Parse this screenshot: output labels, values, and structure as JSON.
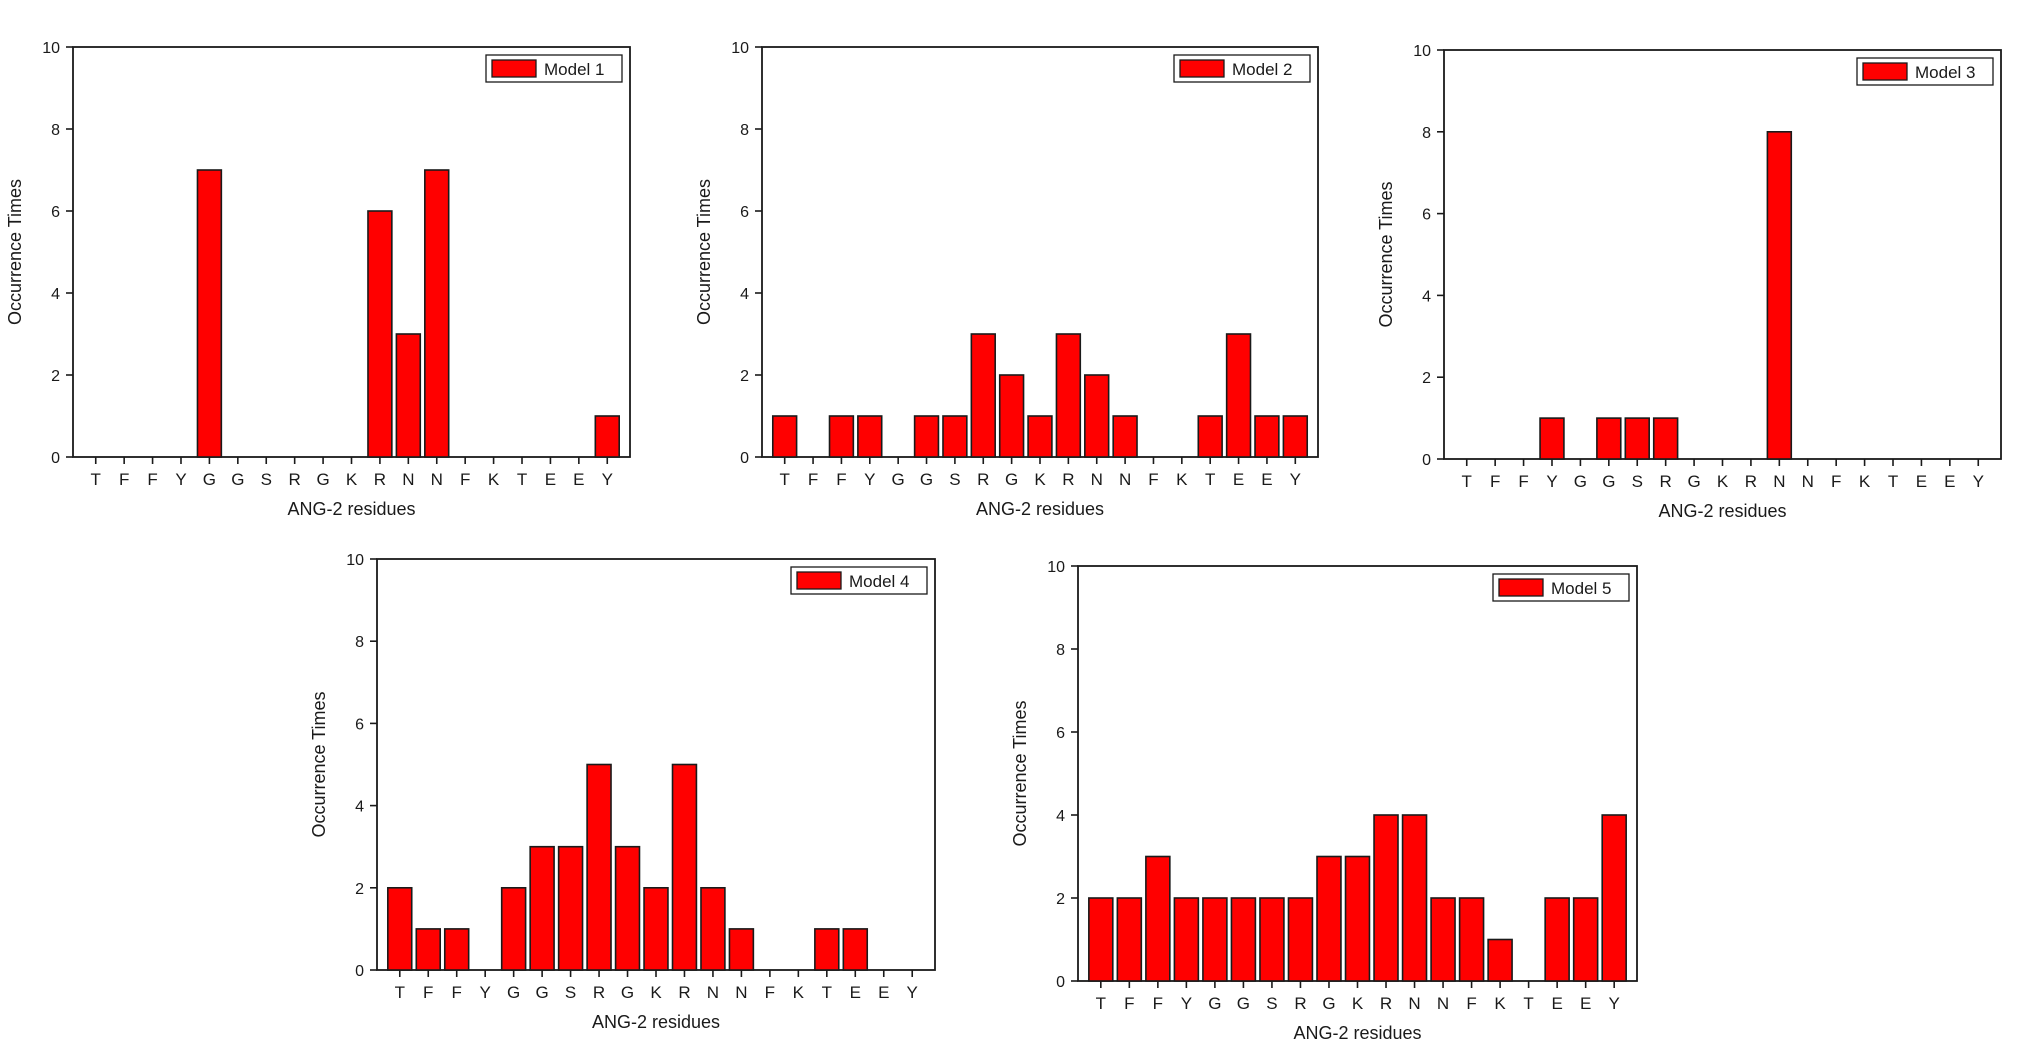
{
  "figure_title": "",
  "chart_data": [
    {
      "type": "bar",
      "title": "",
      "legend": "Model 1",
      "legend_position": "top-right",
      "xlabel": "ANG-2 residues",
      "ylabel": "Occurrence Times",
      "categories": [
        "T",
        "F",
        "F",
        "Y",
        "G",
        "G",
        "S",
        "R",
        "G",
        "K",
        "R",
        "N",
        "N",
        "F",
        "K",
        "T",
        "E",
        "E",
        "Y"
      ],
      "values": [
        0,
        0,
        0,
        0,
        7,
        0,
        0,
        0,
        0,
        0,
        6,
        3,
        7,
        0,
        0,
        0,
        0,
        0,
        1
      ],
      "ylim": [
        0,
        10
      ],
      "yticks": [
        0,
        2,
        4,
        6,
        8,
        10
      ],
      "grid": false
    },
    {
      "type": "bar",
      "title": "",
      "legend": "Model 2",
      "legend_position": "top-right",
      "xlabel": "ANG-2 residues",
      "ylabel": "Occurrence Times",
      "categories": [
        "T",
        "F",
        "F",
        "Y",
        "G",
        "G",
        "S",
        "R",
        "G",
        "K",
        "R",
        "N",
        "N",
        "F",
        "K",
        "T",
        "E",
        "E",
        "Y"
      ],
      "values": [
        1,
        0,
        1,
        1,
        0,
        1,
        1,
        3,
        2,
        1,
        3,
        2,
        1,
        0,
        0,
        1,
        3,
        1,
        1
      ],
      "ylim": [
        0,
        10
      ],
      "yticks": [
        0,
        2,
        4,
        6,
        8,
        10
      ],
      "grid": false
    },
    {
      "type": "bar",
      "title": "",
      "legend": "Model 3",
      "legend_position": "top-right",
      "xlabel": "ANG-2 residues",
      "ylabel": "Occurrence Times",
      "categories": [
        "T",
        "F",
        "F",
        "Y",
        "G",
        "G",
        "S",
        "R",
        "G",
        "K",
        "R",
        "N",
        "N",
        "F",
        "K",
        "T",
        "E",
        "E",
        "Y"
      ],
      "values": [
        0,
        0,
        0,
        1,
        0,
        1,
        1,
        1,
        0,
        0,
        0,
        8,
        0,
        0,
        0,
        0,
        0,
        0,
        0
      ],
      "ylim": [
        0,
        10
      ],
      "yticks": [
        0,
        2,
        4,
        6,
        8,
        10
      ],
      "grid": false
    },
    {
      "type": "bar",
      "title": "",
      "legend": "Model 4",
      "legend_position": "top-right",
      "xlabel": "ANG-2 residues",
      "ylabel": "Occurrence Times",
      "categories": [
        "T",
        "F",
        "F",
        "Y",
        "G",
        "G",
        "S",
        "R",
        "G",
        "K",
        "R",
        "N",
        "N",
        "F",
        "K",
        "T",
        "E",
        "E",
        "Y"
      ],
      "values": [
        2,
        1,
        1,
        0,
        2,
        3,
        3,
        5,
        3,
        2,
        5,
        2,
        1,
        0,
        0,
        1,
        1,
        0,
        0
      ],
      "ylim": [
        0,
        10
      ],
      "yticks": [
        0,
        2,
        4,
        6,
        8,
        10
      ],
      "grid": false
    },
    {
      "type": "bar",
      "title": "",
      "legend": "Model 5",
      "legend_position": "top-right",
      "xlabel": "ANG-2 residues",
      "ylabel": "Occurrence Times",
      "categories": [
        "T",
        "F",
        "F",
        "Y",
        "G",
        "G",
        "S",
        "R",
        "G",
        "K",
        "R",
        "N",
        "N",
        "F",
        "K",
        "T",
        "E",
        "E",
        "Y"
      ],
      "values": [
        2,
        2,
        3,
        2,
        2,
        2,
        2,
        2,
        3,
        3,
        4,
        4,
        2,
        2,
        1,
        0,
        2,
        2,
        4
      ],
      "ylim": [
        0,
        10
      ],
      "yticks": [
        0,
        2,
        4,
        6,
        8,
        10
      ],
      "grid": false
    }
  ],
  "colors": {
    "bar_fill": "#ff0000",
    "bar_stroke": "#1a1a1a",
    "axis": "#1a1a1a",
    "text": "#1a1a1a",
    "background": "#ffffff"
  }
}
